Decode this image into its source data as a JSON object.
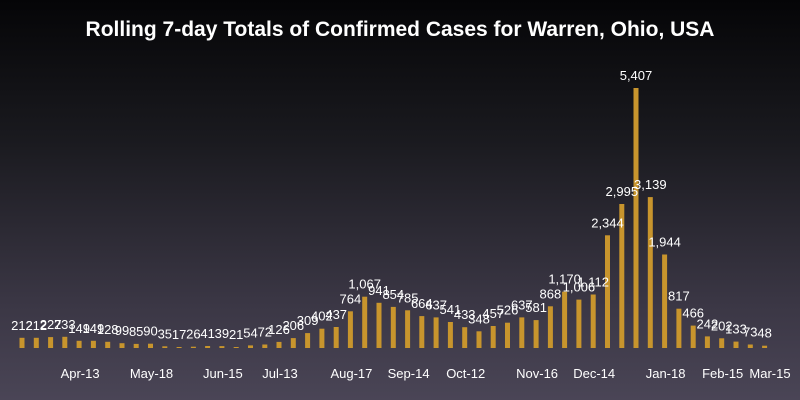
{
  "chart_data": {
    "type": "bar",
    "title": "Rolling 7-day Totals of Confirmed Cases for Warren, Ohio, USA",
    "xlabel": "",
    "ylabel": "",
    "ylim": [
      0,
      5600
    ],
    "grid": false,
    "bar_color": "#c8952d",
    "values": [
      212,
      212,
      227,
      233,
      149,
      149,
      128,
      99,
      85,
      90,
      35,
      17,
      26,
      41,
      39,
      21,
      54,
      72,
      126,
      206,
      309,
      402,
      437,
      764,
      1067,
      941,
      854,
      785,
      664,
      637,
      541,
      433,
      348,
      457,
      526,
      637,
      581,
      868,
      1170,
      1006,
      1112,
      2344,
      2995,
      5407,
      3139,
      1944,
      817,
      466,
      242,
      202,
      133,
      73,
      48
    ],
    "labels": [
      "212",
      "212",
      "227",
      "233",
      "149",
      "149",
      "128",
      "99",
      "85",
      "90",
      "35",
      "17",
      "26",
      "41",
      "39",
      "21",
      "54",
      "72",
      "126",
      "206",
      "309",
      "402",
      "437",
      "764",
      "1,067",
      "941",
      "854",
      "785",
      "664",
      "637",
      "541",
      "433",
      "348",
      "457",
      "526",
      "637",
      "581",
      "868",
      "1,170",
      "1,006",
      "1,112",
      "2,344",
      "2,995",
      "5,407",
      "3,139",
      "1,944",
      "817",
      "466",
      "242",
      "202",
      "133",
      "73",
      "48"
    ],
    "x_ticks": [
      {
        "bar": 4,
        "label": "Apr-13"
      },
      {
        "bar": 9,
        "label": "May-18"
      },
      {
        "bar": 14,
        "label": "Jun-15"
      },
      {
        "bar": 18,
        "label": "Jul-13"
      },
      {
        "bar": 23,
        "label": "Aug-17"
      },
      {
        "bar": 27,
        "label": "Sep-14"
      },
      {
        "bar": 31,
        "label": "Oct-12"
      },
      {
        "bar": 36,
        "label": "Nov-16"
      },
      {
        "bar": 40,
        "label": "Dec-14"
      },
      {
        "bar": 45,
        "label": "Jan-18"
      },
      {
        "bar": 49,
        "label": "Feb-15"
      },
      {
        "bar": 53,
        "label": "Mar-15"
      }
    ]
  }
}
